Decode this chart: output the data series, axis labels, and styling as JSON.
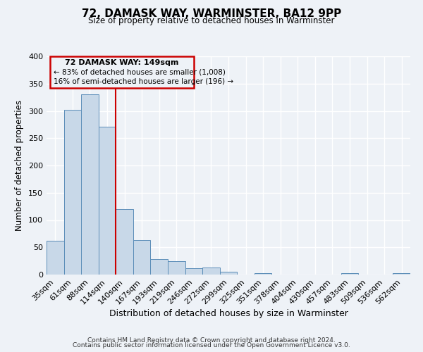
{
  "title": "72, DAMASK WAY, WARMINSTER, BA12 9PP",
  "subtitle": "Size of property relative to detached houses in Warminster",
  "xlabel": "Distribution of detached houses by size in Warminster",
  "ylabel": "Number of detached properties",
  "bin_labels": [
    "35sqm",
    "61sqm",
    "88sqm",
    "114sqm",
    "140sqm",
    "167sqm",
    "193sqm",
    "219sqm",
    "246sqm",
    "272sqm",
    "299sqm",
    "325sqm",
    "351sqm",
    "378sqm",
    "404sqm",
    "430sqm",
    "457sqm",
    "483sqm",
    "509sqm",
    "536sqm",
    "562sqm"
  ],
  "bar_values": [
    62,
    302,
    330,
    271,
    120,
    63,
    28,
    24,
    11,
    13,
    5,
    0,
    3,
    0,
    0,
    0,
    0,
    3,
    0,
    0,
    3
  ],
  "bar_color": "#c8d8e8",
  "bar_edge_color": "#5b8db8",
  "vline_x_index": 3.5,
  "vline_color": "#cc0000",
  "annotation_title": "72 DAMASK WAY: 149sqm",
  "annotation_line1": "← 83% of detached houses are smaller (1,008)",
  "annotation_line2": "16% of semi-detached houses are larger (196) →",
  "annotation_box_color": "#cc0000",
  "ylim": [
    0,
    400
  ],
  "yticks": [
    0,
    50,
    100,
    150,
    200,
    250,
    300,
    350,
    400
  ],
  "footer1": "Contains HM Land Registry data © Crown copyright and database right 2024.",
  "footer2": "Contains public sector information licensed under the Open Government Licence v3.0.",
  "background_color": "#eef2f7",
  "grid_color": "#ffffff"
}
